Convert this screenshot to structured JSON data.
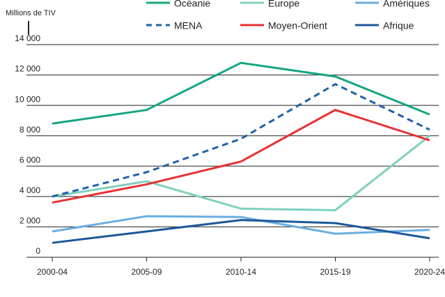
{
  "chart_data": {
    "type": "line",
    "y_label": "Millions de TIV",
    "categories": [
      "2000-04",
      "2005-09",
      "2010-14",
      "2015-19",
      "2020-24"
    ],
    "series": [
      {
        "name": "Océanie",
        "color": "#14a57f",
        "values": [
          8800,
          9700,
          12800,
          11900,
          9400
        ]
      },
      {
        "name": "Europe",
        "color": "#7fd0be",
        "values": [
          4000,
          5000,
          3200,
          3100,
          8000
        ]
      },
      {
        "name": "Amériques",
        "color": "#6aaee2",
        "values": [
          1700,
          2700,
          2650,
          1550,
          1800
        ]
      },
      {
        "name": "MENA",
        "color": "#1f5fa8",
        "dashed": true,
        "values": [
          4000,
          5600,
          7800,
          11400,
          8400
        ]
      },
      {
        "name": "Moyen-Orient",
        "color": "#e53232",
        "values": [
          3600,
          4800,
          6300,
          9700,
          7700
        ]
      },
      {
        "name": "Afrique",
        "color": "#1b5898",
        "values": [
          950,
          1700,
          2450,
          2250,
          1250
        ]
      }
    ],
    "ylim": [
      0,
      14000
    ],
    "yticks": [
      0,
      {
        "value": 2000,
        "label": "2 000"
      },
      {
        "value": 4000,
        "label": "4 000"
      },
      {
        "value": 6000,
        "label": "6 000"
      },
      {
        "value": 8000,
        "label": "8 000"
      },
      {
        "value": 10000,
        "label": "10 000"
      },
      {
        "value": 12000,
        "label": "12 000"
      },
      {
        "value": 14000,
        "label": "14 000"
      }
    ],
    "grid": true
  }
}
